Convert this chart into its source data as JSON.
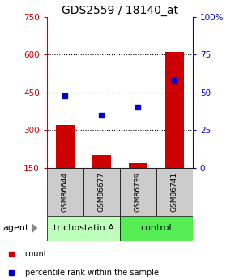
{
  "title": "GDS2559 / 18140_at",
  "samples": [
    "GSM86644",
    "GSM86677",
    "GSM86739",
    "GSM86741"
  ],
  "counts": [
    320,
    200,
    170,
    610
  ],
  "percentiles": [
    48,
    35,
    40,
    58
  ],
  "ylim_left": [
    150,
    750
  ],
  "ylim_right": [
    0,
    100
  ],
  "yticks_left": [
    150,
    300,
    450,
    600,
    750
  ],
  "yticks_right": [
    0,
    25,
    50,
    75,
    100
  ],
  "bar_color": "#cc0000",
  "dot_color": "#0000cc",
  "bar_width": 0.5,
  "background_color": "#ffffff",
  "title_fontsize": 10,
  "tick_fontsize": 7.5,
  "sample_fontsize": 6.5,
  "group_fontsize": 8,
  "legend_fontsize": 7,
  "agent_label": "agent",
  "trichostatin_color": "#bbffbb",
  "control_color": "#55ee55",
  "sample_bg": "#cccccc"
}
